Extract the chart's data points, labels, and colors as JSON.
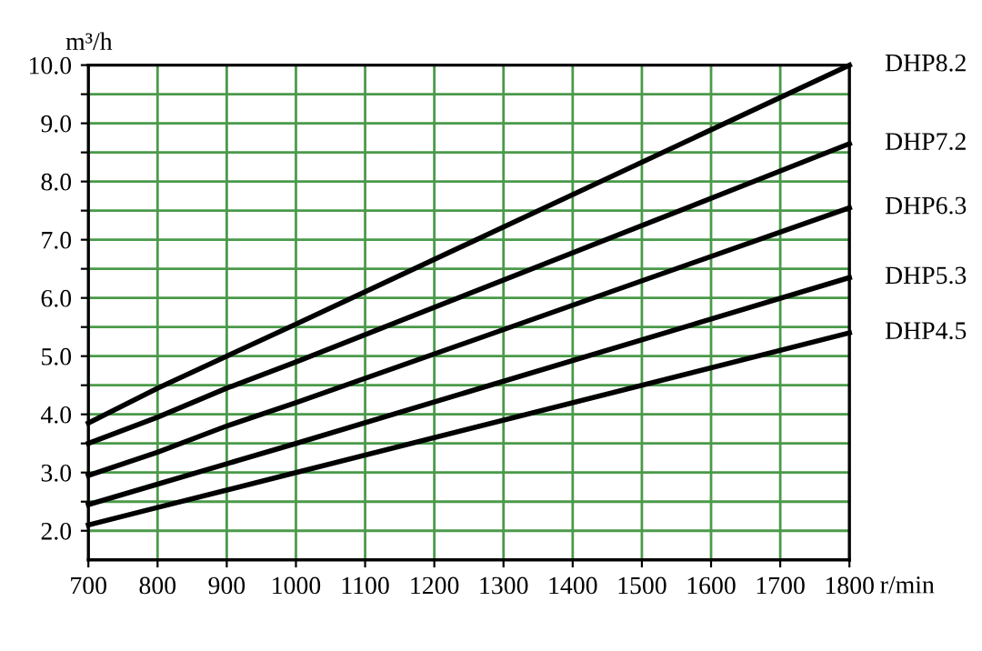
{
  "chart_data": {
    "type": "line",
    "ylabel": "m³/h",
    "xlabel": "r/min",
    "series": [
      {
        "name": "DHP8.2",
        "color": "#000000",
        "x": [
          700,
          800,
          900,
          1000,
          1800
        ],
        "values": [
          3.85,
          4.45,
          5.0,
          5.55,
          10.0
        ]
      },
      {
        "name": "DHP7.2",
        "color": "#000000",
        "x": [
          700,
          800,
          900,
          1000,
          1800
        ],
        "values": [
          3.5,
          3.95,
          4.45,
          4.9,
          8.65
        ]
      },
      {
        "name": "DHP6.3",
        "color": "#000000",
        "x": [
          700,
          800,
          900,
          1000,
          1800
        ],
        "values": [
          2.95,
          3.35,
          3.8,
          4.2,
          7.55
        ]
      },
      {
        "name": "DHP5.3",
        "color": "#000000",
        "x": [
          700,
          800,
          900,
          1000,
          1800
        ],
        "values": [
          2.45,
          2.8,
          3.15,
          3.5,
          6.35
        ]
      },
      {
        "name": "DHP4.5",
        "color": "#000000",
        "x": [
          700,
          800,
          900,
          1000,
          1800
        ],
        "values": [
          2.1,
          2.4,
          2.7,
          3.0,
          5.4
        ]
      }
    ],
    "xlim": [
      700,
      1800
    ],
    "xticks": [
      700,
      800,
      900,
      1000,
      1100,
      1200,
      1300,
      1400,
      1500,
      1600,
      1700,
      1800
    ],
    "ylim": [
      1.5,
      10
    ],
    "yticks": [
      {
        "value": 2,
        "label": "2.0"
      },
      {
        "value": 2.5,
        "label": null
      },
      {
        "value": 3,
        "label": "3.0"
      },
      {
        "value": 3.5,
        "label": null
      },
      {
        "value": 4,
        "label": "4.0"
      },
      {
        "value": 4.5,
        "label": null
      },
      {
        "value": 5,
        "label": "5.0"
      },
      {
        "value": 5.5,
        "label": null
      },
      {
        "value": 6,
        "label": "6.0"
      },
      {
        "value": 6.5,
        "label": null
      },
      {
        "value": 7,
        "label": "7.0"
      },
      {
        "value": 7.5,
        "label": null
      },
      {
        "value": 8,
        "label": "8.0"
      },
      {
        "value": 8.5,
        "label": null
      },
      {
        "value": 9,
        "label": "9.0"
      },
      {
        "value": 9.5,
        "label": null
      },
      {
        "value": 10,
        "label": "10.0"
      }
    ],
    "grid": true,
    "legend": "right",
    "marker": "none",
    "line_style": "solid"
  }
}
